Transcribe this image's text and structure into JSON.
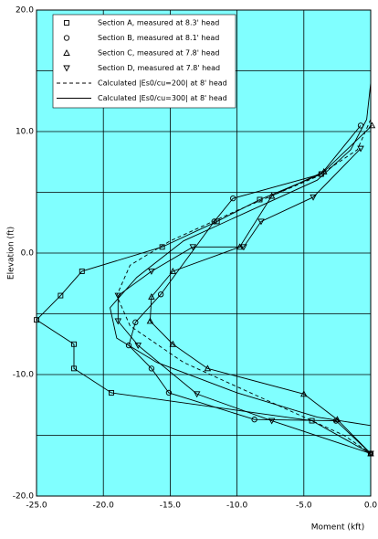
{
  "chart_data": {
    "type": "line",
    "xlabel": "Moment (kft)",
    "ylabel": "Elevation (ft)",
    "xlim": [
      -25,
      0
    ],
    "ylim": [
      -20,
      20
    ],
    "xticks": [
      {
        "value": -25,
        "label": "-25.0"
      },
      {
        "value": -20,
        "label": "-20.0"
      },
      {
        "value": -15,
        "label": "-15.0"
      },
      {
        "value": -10,
        "label": "-10.0"
      },
      {
        "value": -5,
        "label": "-5.0"
      },
      {
        "value": 0,
        "label": "0.0"
      }
    ],
    "yticks": [
      {
        "value": -20,
        "label": "-20.0"
      },
      {
        "value": -10,
        "label": "-10.0"
      },
      {
        "value": 0,
        "label": "0.0"
      },
      {
        "value": 10,
        "label": "10.0"
      },
      {
        "value": 20,
        "label": "20.0"
      }
    ],
    "yminor": [
      -15,
      -5,
      5,
      15
    ],
    "grid": true,
    "background": "#80ffff",
    "legend": "upper left",
    "series": [
      {
        "name": "Section A, measured at 8.3' head",
        "marker": "square",
        "dash": false,
        "color": "#000000",
        "x": [
          -3.7,
          -8.3,
          -11.5,
          -15.6,
          -21.6,
          -23.2,
          -25,
          -22.2,
          -22.2,
          -19.4,
          -4.4,
          0
        ],
        "values": [
          6.5,
          4.4,
          2.6,
          0.5,
          -1.5,
          -3.5,
          -5.5,
          -7.5,
          -9.5,
          -11.5,
          -13.8,
          -16.5
        ]
      },
      {
        "name": "Section B, measured at 8.1' head",
        "marker": "circle",
        "dash": false,
        "color": "#000000",
        "x": [
          -0.75,
          -3.7,
          -10.3,
          -11.7,
          -15.7,
          -17.6,
          -18.1,
          -16.4,
          -15.1,
          -8.7,
          -2.6,
          0
        ],
        "values": [
          10.5,
          6.5,
          4.5,
          2.6,
          -3.4,
          -5.7,
          -7.6,
          -9.5,
          -11.5,
          -13.7,
          -13.8,
          -16.5
        ]
      },
      {
        "name": "Section C, measured at 7.8' head",
        "marker": "triangle-up",
        "dash": false,
        "color": "#000000",
        "x": [
          0.1,
          -3.5,
          -7.4,
          -9.8,
          -14.8,
          -16.4,
          -16.5,
          -14.8,
          -12.2,
          -5,
          -2.5,
          0
        ],
        "values": [
          10.5,
          6.7,
          4.7,
          0.5,
          -1.5,
          -3.6,
          -5.6,
          -7.5,
          -9.5,
          -11.6,
          -13.7,
          -16.5
        ]
      },
      {
        "name": "Section D, measured at 7.8' head",
        "marker": "triangle-down",
        "dash": false,
        "color": "#000000",
        "x": [
          -0.75,
          -4.3,
          -8.2,
          -9.5,
          -13.3,
          -16.4,
          -18.9,
          -18.9,
          -17.4,
          -13,
          -7.4,
          0
        ],
        "values": [
          8.6,
          4.6,
          2.6,
          0.5,
          0.5,
          -1.5,
          -3.5,
          -5.6,
          -7.6,
          -11.6,
          -13.8,
          -16.5
        ]
      },
      {
        "name": "Calculated |Es0/cu=200| at 8' head",
        "marker": null,
        "dash": true,
        "color": "#000000",
        "x": [
          0,
          -1,
          -4,
          -10,
          -15,
          -18,
          -19,
          -18,
          -14,
          -8,
          -2,
          0
        ],
        "values": [
          11,
          8.5,
          6.3,
          3.5,
          1,
          -1,
          -3.5,
          -6,
          -9,
          -12,
          -15,
          -16.5
        ]
      },
      {
        "name": "Calculated |Es0/cu=300| at 8' head",
        "marker": null,
        "dash": false,
        "color": "#000000",
        "x": [
          0,
          -0.3,
          -1.5,
          -4,
          -9,
          -14,
          -17.5,
          -19.5,
          -19,
          -16,
          -10,
          -4,
          0
        ],
        "values": [
          14,
          11,
          8.5,
          6,
          3.5,
          1,
          -2,
          -4.5,
          -7,
          -9,
          -11.5,
          -13.5,
          -14.2
        ]
      }
    ]
  }
}
